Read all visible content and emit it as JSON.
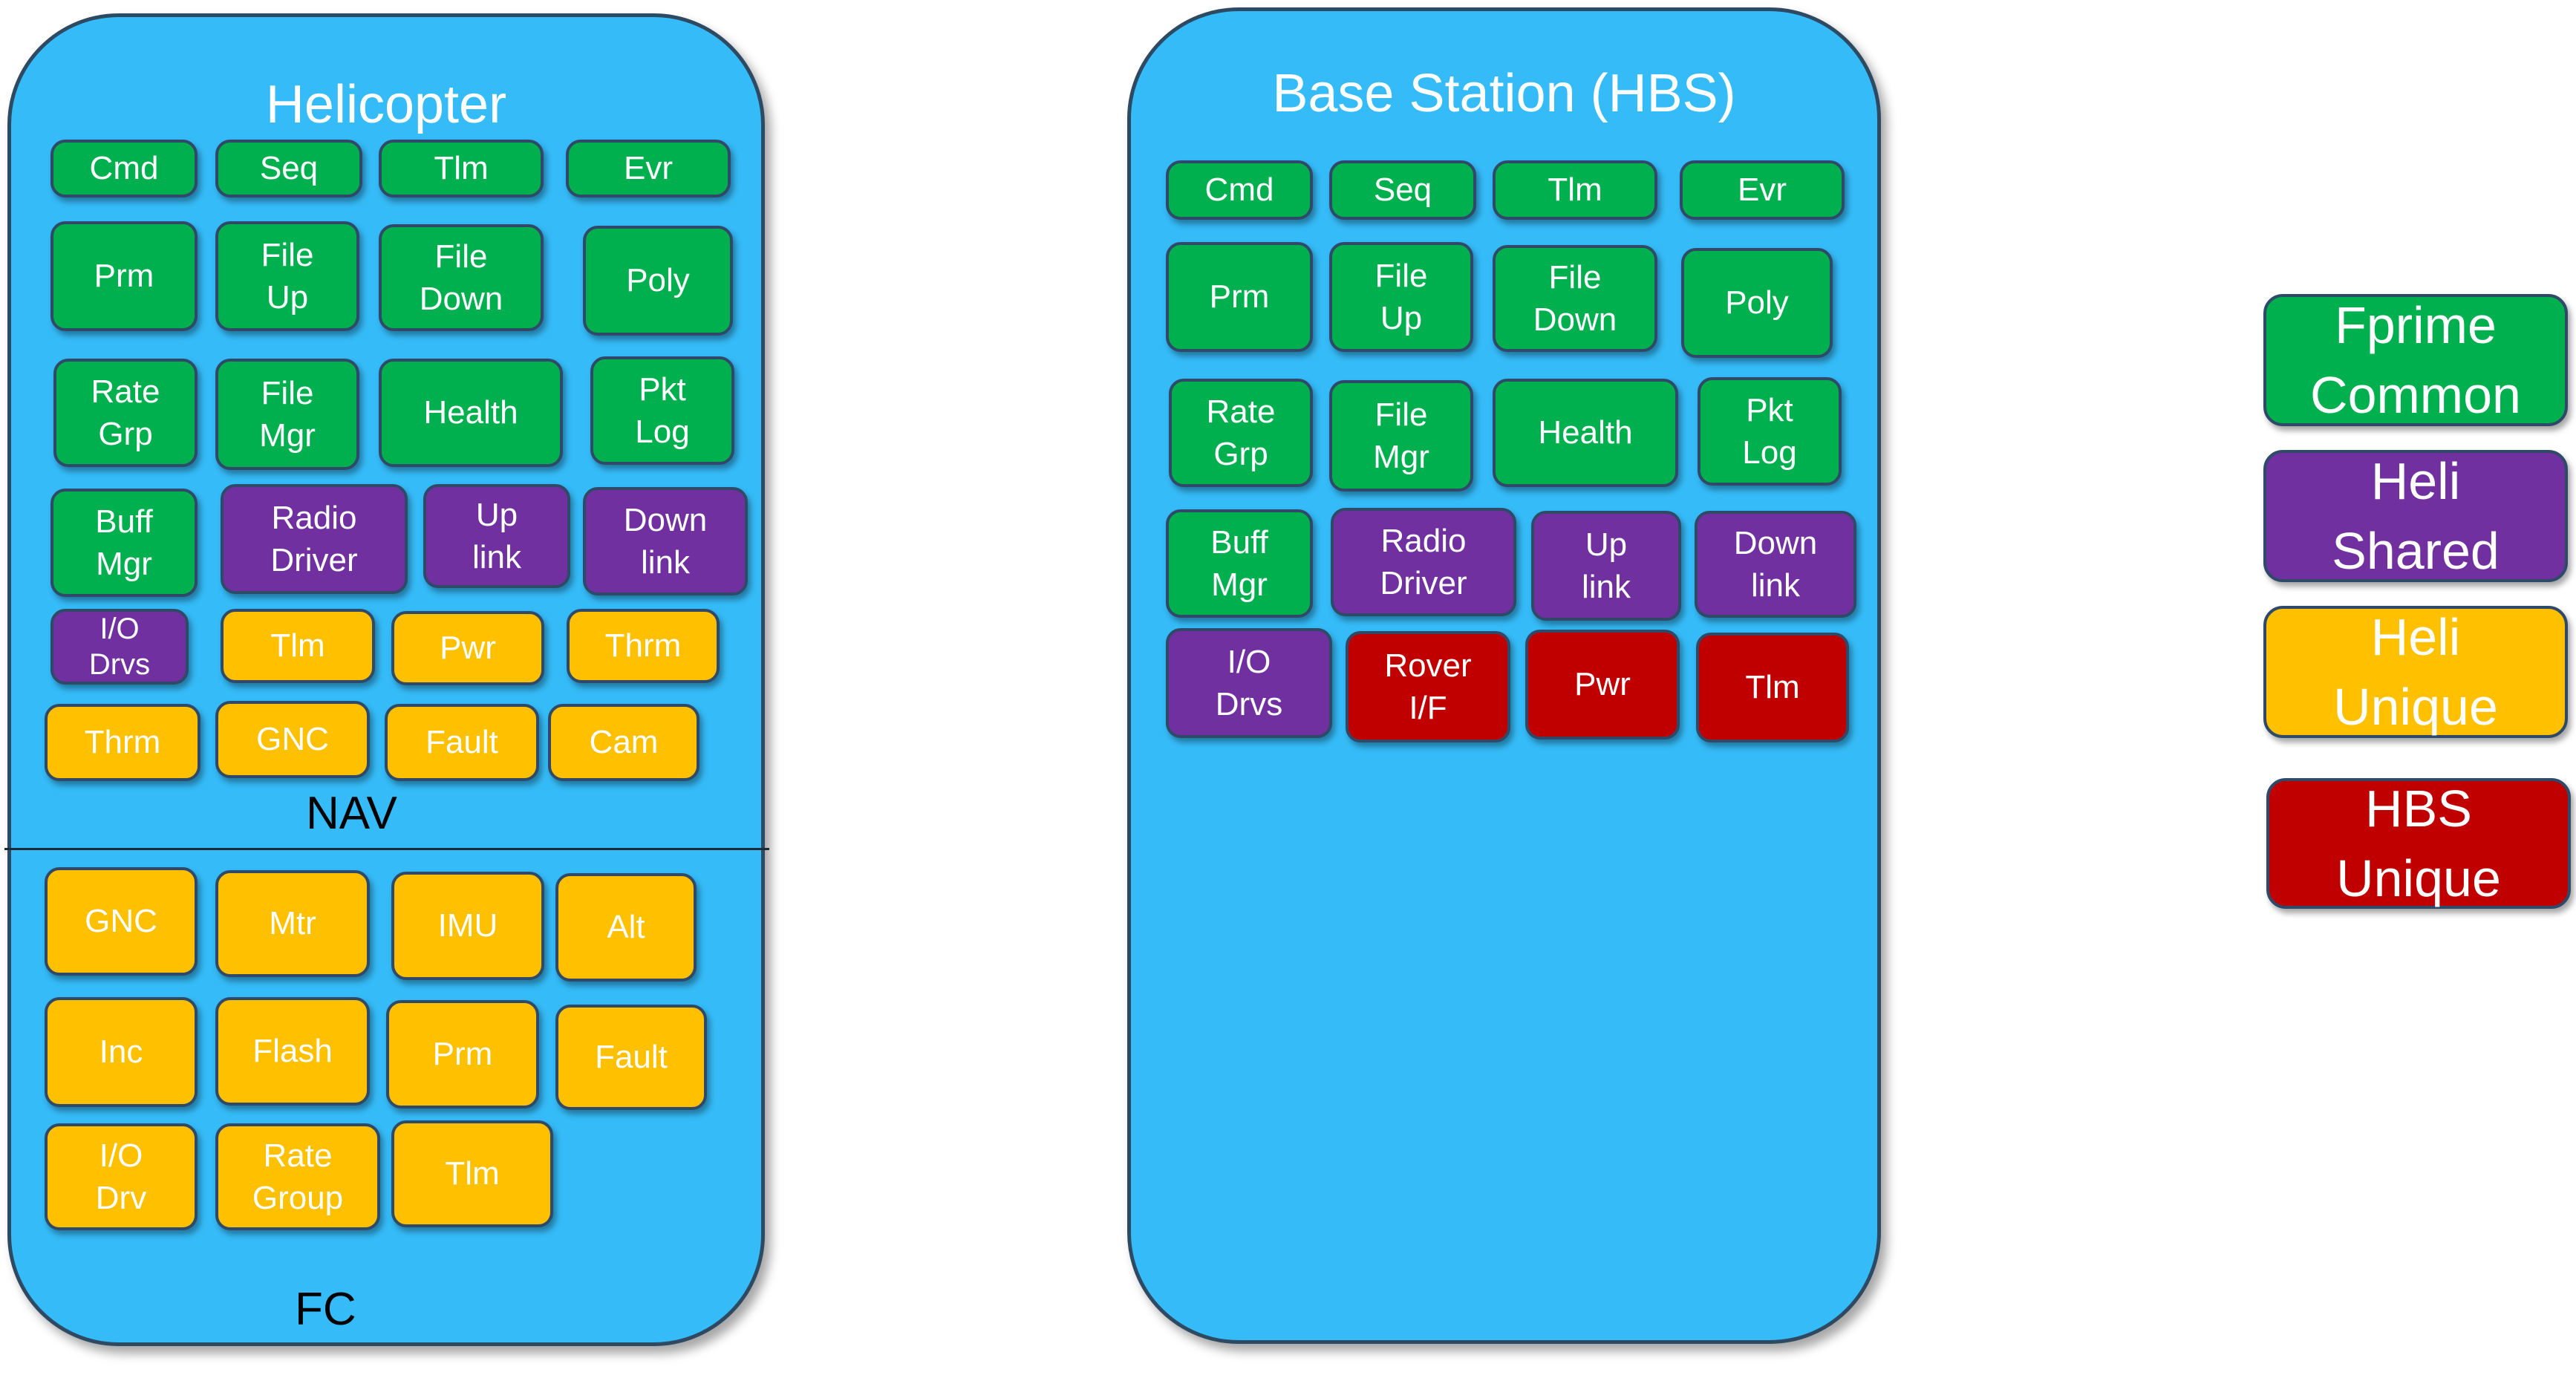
{
  "helicopter": {
    "title": "Helicopter",
    "nav_label": "NAV",
    "fc_label": "FC",
    "nav_components": [
      {
        "label": "Cmd",
        "category": "fprime_common"
      },
      {
        "label": "Seq",
        "category": "fprime_common"
      },
      {
        "label": "Tlm",
        "category": "fprime_common"
      },
      {
        "label": "Evr",
        "category": "fprime_common"
      },
      {
        "label": "Prm",
        "category": "fprime_common"
      },
      {
        "label": "File\nUp",
        "category": "fprime_common"
      },
      {
        "label": "File\nDown",
        "category": "fprime_common"
      },
      {
        "label": "Poly",
        "category": "fprime_common"
      },
      {
        "label": "Rate\nGrp",
        "category": "fprime_common"
      },
      {
        "label": "File\nMgr",
        "category": "fprime_common"
      },
      {
        "label": "Health",
        "category": "fprime_common"
      },
      {
        "label": "Pkt\nLog",
        "category": "fprime_common"
      },
      {
        "label": "Buff\nMgr",
        "category": "fprime_common"
      },
      {
        "label": "Radio\nDriver",
        "category": "heli_shared"
      },
      {
        "label": "Up\nlink",
        "category": "heli_shared"
      },
      {
        "label": "Down\nlink",
        "category": "heli_shared"
      },
      {
        "label": "I/O\nDrvs",
        "category": "heli_shared"
      },
      {
        "label": "Tlm",
        "category": "heli_unique"
      },
      {
        "label": "Pwr",
        "category": "heli_unique"
      },
      {
        "label": "Thrm",
        "category": "heli_unique"
      },
      {
        "label": "Thrm",
        "category": "heli_unique"
      },
      {
        "label": "GNC",
        "category": "heli_unique"
      },
      {
        "label": "Fault",
        "category": "heli_unique"
      },
      {
        "label": "Cam",
        "category": "heli_unique"
      }
    ],
    "fc_components": [
      {
        "label": "GNC",
        "category": "heli_unique"
      },
      {
        "label": "Mtr",
        "category": "heli_unique"
      },
      {
        "label": "IMU",
        "category": "heli_unique"
      },
      {
        "label": "Alt",
        "category": "heli_unique"
      },
      {
        "label": "Inc",
        "category": "heli_unique"
      },
      {
        "label": "Flash",
        "category": "heli_unique"
      },
      {
        "label": "Prm",
        "category": "heli_unique"
      },
      {
        "label": "Fault",
        "category": "heli_unique"
      },
      {
        "label": "I/O\nDrv",
        "category": "heli_unique"
      },
      {
        "label": "Rate\nGroup",
        "category": "heli_unique"
      },
      {
        "label": "Tlm",
        "category": "heli_unique"
      }
    ]
  },
  "base_station": {
    "title": "Base Station (HBS)",
    "components": [
      {
        "label": "Cmd",
        "category": "fprime_common"
      },
      {
        "label": "Seq",
        "category": "fprime_common"
      },
      {
        "label": "Tlm",
        "category": "fprime_common"
      },
      {
        "label": "Evr",
        "category": "fprime_common"
      },
      {
        "label": "Prm",
        "category": "fprime_common"
      },
      {
        "label": "File\nUp",
        "category": "fprime_common"
      },
      {
        "label": "File\nDown",
        "category": "fprime_common"
      },
      {
        "label": "Poly",
        "category": "fprime_common"
      },
      {
        "label": "Rate\nGrp",
        "category": "fprime_common"
      },
      {
        "label": "File\nMgr",
        "category": "fprime_common"
      },
      {
        "label": "Health",
        "category": "fprime_common"
      },
      {
        "label": "Pkt\nLog",
        "category": "fprime_common"
      },
      {
        "label": "Buff\nMgr",
        "category": "fprime_common"
      },
      {
        "label": "Radio\nDriver",
        "category": "heli_shared"
      },
      {
        "label": "Up\nlink",
        "category": "heli_shared"
      },
      {
        "label": "Down\nlink",
        "category": "heli_shared"
      },
      {
        "label": "I/O\nDrvs",
        "category": "heli_shared"
      },
      {
        "label": "Rover\nI/F",
        "category": "hbs_unique"
      },
      {
        "label": "Pwr",
        "category": "hbs_unique"
      },
      {
        "label": "Tlm",
        "category": "hbs_unique"
      }
    ]
  },
  "legend": [
    {
      "label": "Fprime\nCommon",
      "category": "fprime_common"
    },
    {
      "label": "Heli\nShared",
      "category": "heli_shared"
    },
    {
      "label": "Heli\nUnique",
      "category": "heli_unique"
    },
    {
      "label": "HBS\nUnique",
      "category": "hbs_unique"
    }
  ],
  "colors": {
    "panel_fill": "#35bbf8",
    "fprime_common": "#00b04f",
    "heli_shared": "#7030a0",
    "heli_unique": "#ffc000",
    "hbs_unique": "#c00000"
  }
}
